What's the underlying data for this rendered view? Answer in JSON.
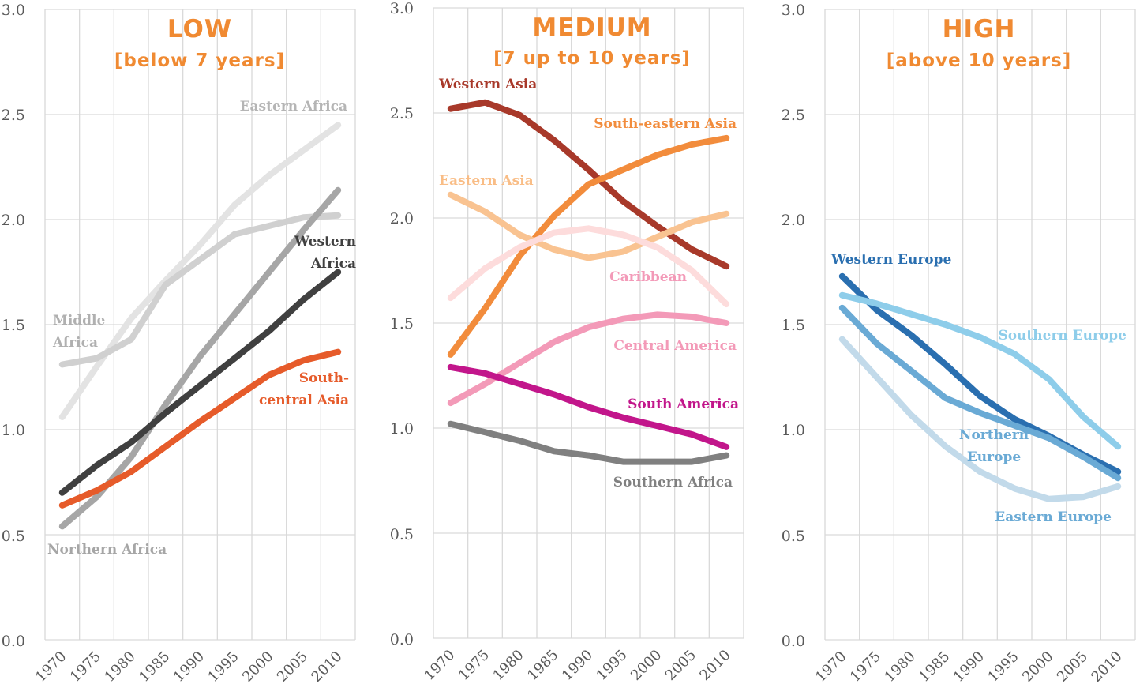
{
  "chart_data": [
    {
      "type": "line",
      "title": "LOW",
      "subtitle": "[below 7 years]",
      "x": [
        1970,
        1975,
        1980,
        1985,
        1990,
        1995,
        2000,
        2005,
        2010
      ],
      "ylim": [
        0,
        3
      ],
      "yticks": [
        "0.0",
        "0.5",
        "1.0",
        "1.5",
        "2.0",
        "2.5",
        "3.0"
      ],
      "xticks": [
        "1970",
        "1975",
        "1980",
        "1985",
        "1990",
        "1995",
        "2000",
        "2005",
        "2010"
      ],
      "grid": true,
      "series": [
        {
          "name": "Eastern Africa",
          "color": "#e3e3e3",
          "values": [
            1.06,
            1.3,
            1.53,
            1.71,
            1.88,
            2.07,
            2.21,
            2.33,
            2.45
          ],
          "label_line1": "Eastern Africa",
          "label_line2": ""
        },
        {
          "name": "Middle Africa",
          "color": "#d0d0d0",
          "values": [
            1.31,
            1.34,
            1.43,
            1.69,
            1.81,
            1.93,
            1.97,
            2.01,
            2.02
          ],
          "label_line1": "Middle",
          "label_line2": "Africa"
        },
        {
          "name": "Northern Africa",
          "color": "#a6a6a6",
          "values": [
            0.54,
            0.68,
            0.87,
            1.12,
            1.35,
            1.55,
            1.75,
            1.95,
            2.14
          ],
          "label_line1": "Northern Africa",
          "label_line2": ""
        },
        {
          "name": "Western Africa",
          "color": "#404040",
          "values": [
            0.7,
            0.83,
            0.94,
            1.08,
            1.21,
            1.34,
            1.47,
            1.62,
            1.75
          ],
          "label_line1": "Western",
          "label_line2": "Africa"
        },
        {
          "name": "South-central Asia",
          "color": "#e65b2a",
          "values": [
            0.64,
            0.71,
            0.8,
            0.92,
            1.04,
            1.15,
            1.26,
            1.33,
            1.37
          ],
          "label_line1": "South-",
          "label_line2": "central Asia"
        }
      ]
    },
    {
      "type": "line",
      "title": "MEDIUM",
      "subtitle": "[7 up to 10 years]",
      "x": [
        1970,
        1975,
        1980,
        1985,
        1990,
        1995,
        2000,
        2005,
        2010
      ],
      "ylim": [
        0,
        3
      ],
      "yticks": [
        "0.0",
        "0.5",
        "1.0",
        "1.5",
        "2.0",
        "2.5",
        "3.0"
      ],
      "xticks": [
        "1970",
        "1975",
        "1980",
        "1985",
        "1990",
        "1995",
        "2000",
        "2005",
        "2010"
      ],
      "grid": true,
      "series": [
        {
          "name": "Western Asia",
          "color": "#a8392a",
          "values": [
            2.52,
            2.55,
            2.49,
            2.37,
            2.23,
            2.08,
            1.96,
            1.85,
            1.77
          ],
          "label_line1": "Western Asia",
          "label_line2": ""
        },
        {
          "name": "South-eastern Asia",
          "color": "#f28c3c",
          "values": [
            1.35,
            1.57,
            1.82,
            2.01,
            2.16,
            2.23,
            2.3,
            2.35,
            2.38
          ],
          "label_line1": "South-eastern Asia",
          "label_line2": ""
        },
        {
          "name": "Eastern Asia",
          "color": "#f9c391",
          "values": [
            2.11,
            2.03,
            1.92,
            1.85,
            1.81,
            1.84,
            1.91,
            1.98,
            2.02
          ],
          "label_line1": "Eastern Asia",
          "label_line2": ""
        },
        {
          "name": "Caribbean",
          "color": "#fddcdc",
          "values": [
            1.62,
            1.76,
            1.86,
            1.93,
            1.95,
            1.92,
            1.86,
            1.75,
            1.59
          ],
          "label_line1": "Caribbean",
          "label_line2": ""
        },
        {
          "name": "Central America",
          "color": "#f39ab8",
          "values": [
            1.12,
            1.21,
            1.31,
            1.41,
            1.48,
            1.52,
            1.54,
            1.53,
            1.5
          ],
          "label_line1": "Central America",
          "label_line2": ""
        },
        {
          "name": "South America",
          "color": "#c2168b",
          "values": [
            1.29,
            1.26,
            1.21,
            1.16,
            1.1,
            1.05,
            1.01,
            0.97,
            0.91
          ],
          "label_line1": "South America",
          "label_line2": ""
        },
        {
          "name": "Southern Africa",
          "color": "#808080",
          "values": [
            1.02,
            0.98,
            0.94,
            0.89,
            0.87,
            0.84,
            0.84,
            0.84,
            0.87
          ],
          "label_line1": "Southern Africa",
          "label_line2": ""
        }
      ]
    },
    {
      "type": "line",
      "title": "HIGH",
      "subtitle": "[above 10 years]",
      "x": [
        1970,
        1975,
        1980,
        1985,
        1990,
        1995,
        2000,
        2005,
        2010
      ],
      "ylim": [
        0,
        3
      ],
      "yticks": [
        "0.0",
        "0.5",
        "1.0",
        "1.5",
        "2.0",
        "2.5",
        "3.0"
      ],
      "xticks": [
        "1970",
        "1975",
        "1980",
        "1985",
        "1990",
        "1995",
        "2000",
        "2005",
        "2010"
      ],
      "grid": true,
      "series": [
        {
          "name": "Western Europe",
          "color": "#2a6fb0",
          "values": [
            1.73,
            1.57,
            1.45,
            1.31,
            1.16,
            1.05,
            0.97,
            0.88,
            0.8
          ],
          "label_line1": "Western Europe",
          "label_line2": ""
        },
        {
          "name": "Southern Europe",
          "color": "#8ecdea",
          "values": [
            1.64,
            1.6,
            1.55,
            1.5,
            1.44,
            1.36,
            1.24,
            1.06,
            0.92
          ],
          "label_line1": "Southern Europe",
          "label_line2": ""
        },
        {
          "name": "Northern Europe",
          "color": "#6aaad5",
          "values": [
            1.58,
            1.41,
            1.28,
            1.15,
            1.08,
            1.02,
            0.96,
            0.87,
            0.77
          ],
          "label_line1": "Northern",
          "label_line2": "Europe"
        },
        {
          "name": "Eastern Europe",
          "color": "#c2daea",
          "values": [
            1.43,
            1.25,
            1.07,
            0.92,
            0.8,
            0.72,
            0.67,
            0.68,
            0.73
          ],
          "label_line1": "Eastern Europe",
          "label_line2": ""
        }
      ]
    }
  ]
}
